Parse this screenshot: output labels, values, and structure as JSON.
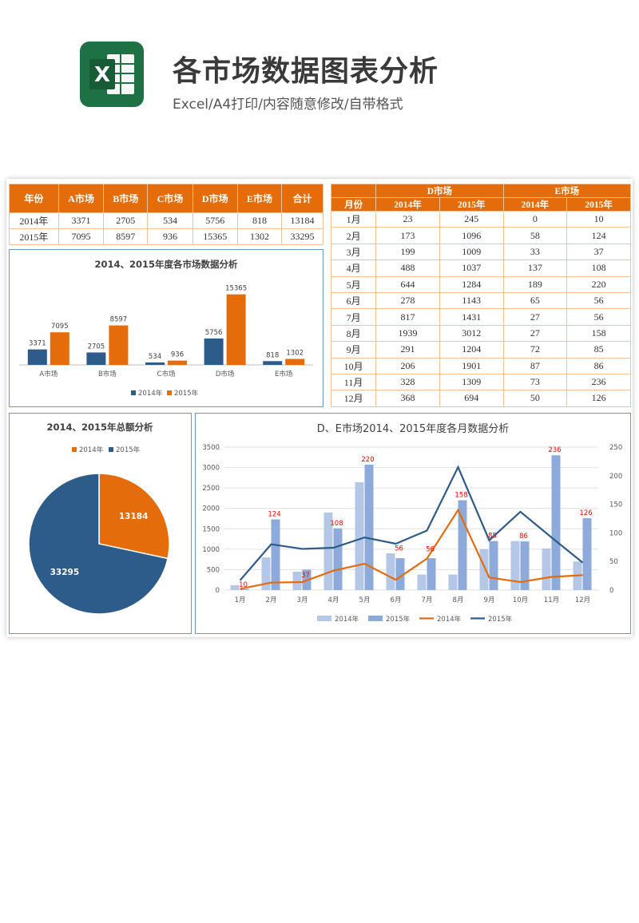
{
  "header": {
    "logo_letter": "X",
    "title": "各市场数据图表分析",
    "subtitle": "Excel/A4打印/内容随意修改/自带格式"
  },
  "colors": {
    "orange": "#e46c0a",
    "blue": "#2e5c8a",
    "light_blue": "#b4c7e7",
    "mid_blue": "#8eaadb",
    "label_red": "#ff0000"
  },
  "summary_table": {
    "headers": [
      "年份",
      "A市场",
      "B市场",
      "C市场",
      "D市场",
      "E市场",
      "合计"
    ],
    "rows": [
      [
        "2014年",
        "3371",
        "2705",
        "534",
        "5756",
        "818",
        "13184"
      ],
      [
        "2015年",
        "7095",
        "8597",
        "936",
        "15365",
        "1302",
        "33295"
      ]
    ]
  },
  "monthly_table": {
    "group_headers": [
      "D市场",
      "E市场"
    ],
    "headers": [
      "月份",
      "2014年",
      "2015年",
      "2014年",
      "2015年"
    ],
    "rows": [
      [
        "1月",
        "23",
        "245",
        "0",
        "10"
      ],
      [
        "2月",
        "173",
        "1096",
        "58",
        "124"
      ],
      [
        "3月",
        "199",
        "1009",
        "33",
        "37"
      ],
      [
        "4月",
        "488",
        "1037",
        "137",
        "108"
      ],
      [
        "5月",
        "644",
        "1284",
        "189",
        "220"
      ],
      [
        "6月",
        "278",
        "1143",
        "65",
        "56"
      ],
      [
        "7月",
        "817",
        "1431",
        "27",
        "56"
      ],
      [
        "8月",
        "1939",
        "3012",
        "27",
        "158"
      ],
      [
        "9月",
        "291",
        "1204",
        "72",
        "85"
      ],
      [
        "10月",
        "206",
        "1901",
        "87",
        "86"
      ],
      [
        "11月",
        "328",
        "1309",
        "73",
        "236"
      ],
      [
        "12月",
        "368",
        "694",
        "50",
        "126"
      ]
    ]
  },
  "chart_data": [
    {
      "type": "bar",
      "title": "2014、2015年度各市场数据分析",
      "categories": [
        "A市场",
        "B市场",
        "C市场",
        "D市场",
        "E市场"
      ],
      "series": [
        {
          "name": "2014年",
          "color": "#2e5c8a",
          "values": [
            3371,
            2705,
            534,
            5756,
            818
          ]
        },
        {
          "name": "2015年",
          "color": "#e46c0a",
          "values": [
            7095,
            8597,
            936,
            15365,
            1302
          ]
        }
      ],
      "ylim": [
        0,
        16000
      ],
      "legend": "bottom"
    },
    {
      "type": "pie",
      "title": "2014、2015年总额分析",
      "labels": [
        "2014年",
        "2015年"
      ],
      "values": [
        13184,
        33295
      ],
      "colors": [
        "#e46c0a",
        "#2e5c8a"
      ],
      "legend": "top"
    },
    {
      "type": "bar",
      "title": "D、E市场2014、2015年度各月数据分析",
      "categories": [
        "1月",
        "2月",
        "3月",
        "4月",
        "5月",
        "6月",
        "7月",
        "8月",
        "9月",
        "10月",
        "11月",
        "12月"
      ],
      "series": [
        {
          "name": "2014年",
          "kind": "bar",
          "axis": "left",
          "color": "#b4c7e7",
          "values": [
            120,
            800,
            450,
            1900,
            2640,
            900,
            380,
            380,
            1000,
            1200,
            1020,
            700
          ]
        },
        {
          "name": "2015年",
          "kind": "bar",
          "axis": "left",
          "color": "#8eaadb",
          "values": [
            20,
            1730,
            500,
            1510,
            3070,
            780,
            780,
            2200,
            1200,
            1190,
            3300,
            1760
          ]
        },
        {
          "name": "2014年",
          "kind": "line",
          "axis": "right",
          "color": "#e46c0a",
          "values": [
            2,
            13,
            14,
            34,
            46,
            18,
            55,
            140,
            22,
            14,
            23,
            26
          ]
        },
        {
          "name": "2015年",
          "kind": "line",
          "axis": "right",
          "color": "#2e5c8a",
          "values": [
            17,
            80,
            72,
            74,
            92,
            81,
            104,
            215,
            87,
            137,
            92,
            48
          ]
        }
      ],
      "data_labels": [
        "10",
        "124",
        "37",
        "108",
        "220",
        "56",
        "56",
        "158",
        "85",
        "86",
        "236",
        "126"
      ],
      "label_heights": [
        4,
        1730,
        230,
        1510,
        3070,
        890,
        870,
        2200,
        1200,
        1190,
        3300,
        1760
      ],
      "y_left": {
        "ticks": [
          0,
          500,
          1000,
          1500,
          2000,
          2500,
          3000,
          3500
        ],
        "lim": [
          0,
          3500
        ]
      },
      "y_right": {
        "ticks": [
          0,
          50,
          100,
          150,
          200,
          250
        ],
        "lim": [
          0,
          250
        ]
      },
      "legend": "bottom"
    }
  ]
}
